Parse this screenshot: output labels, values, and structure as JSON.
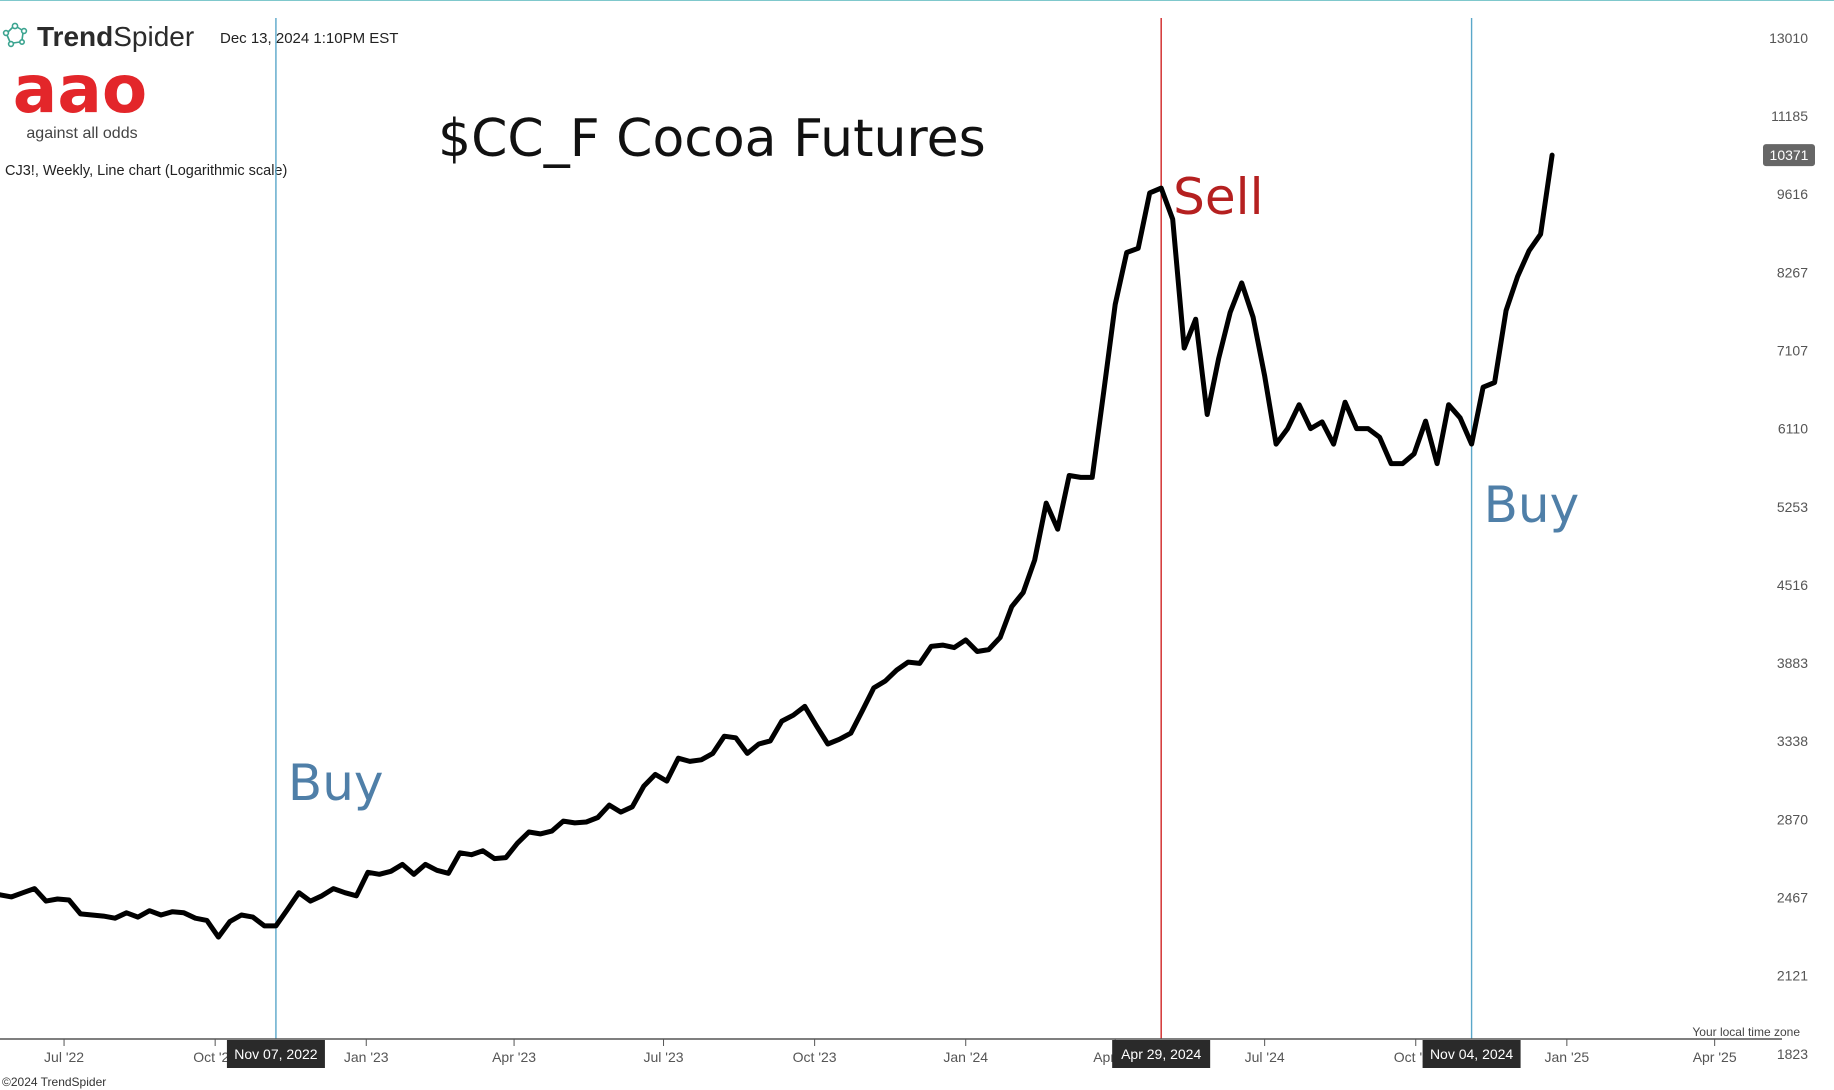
{
  "header": {
    "brand": "TrendSpider",
    "brand_bold": "Trend",
    "brand_light": "Spider",
    "timestamp": "Dec 13, 2024 1:10PM EST",
    "logo_text": "aao",
    "logo_tagline": "against all odds",
    "chart_desc": "CJ3!, Weekly, Line chart (Logarithmic scale)",
    "footer_copyright": "©2024 TrendSpider",
    "timezone_note": "Your local time zone",
    "brand_color": "#e3262a",
    "logo_icon": "network-nodes-icon"
  },
  "chart_data": {
    "type": "line",
    "title": "$CC_F Cocoa Futures",
    "yscale": "log",
    "ylim": [
      1700,
      14000
    ],
    "xlim": [
      "2022-05-23",
      "2025-05-12"
    ],
    "grid": false,
    "y_ticks": [
      13010,
      11185,
      9616,
      8267,
      7107,
      6110,
      5253,
      4516,
      3883,
      3338,
      2870,
      2467,
      2121,
      1823
    ],
    "x_ticks": [
      {
        "label": "Jul '22",
        "date": "2022-07-01"
      },
      {
        "label": "Oct '22",
        "date": "2022-10-01"
      },
      {
        "label": "Jan '23",
        "date": "2023-01-01"
      },
      {
        "label": "Apr '23",
        "date": "2023-04-01"
      },
      {
        "label": "Jul '23",
        "date": "2023-07-01"
      },
      {
        "label": "Oct '23",
        "date": "2023-10-01"
      },
      {
        "label": "Jan '24",
        "date": "2024-01-01"
      },
      {
        "label": "Apr '24",
        "date": "2024-04-01"
      },
      {
        "label": "Jul '24",
        "date": "2024-07-01"
      },
      {
        "label": "Oct '24",
        "date": "2024-10-01"
      },
      {
        "label": "Jan '25",
        "date": "2025-01-01"
      },
      {
        "label": "Apr '25",
        "date": "2025-04-01"
      }
    ],
    "last_price": 10371,
    "markers": [
      {
        "date": "2022-11-07",
        "label": "Nov 07, 2022",
        "signal": "Buy",
        "color": "#5aa7c9",
        "text_color": "#4f7fa8"
      },
      {
        "date": "2024-04-29",
        "label": "Apr 29, 2024",
        "signal": "Sell",
        "color": "#d02424",
        "text_color": "#b52020"
      },
      {
        "date": "2024-11-04",
        "label": "Nov 04, 2024",
        "signal": "Buy",
        "color": "#5aa7c9",
        "text_color": "#4f7fa8"
      }
    ],
    "series": [
      {
        "color": "#000000",
        "points": [
          [
            "2022-05-23",
            2480
          ],
          [
            "2022-05-30",
            2470
          ],
          [
            "2022-06-06",
            2490
          ],
          [
            "2022-06-13",
            2510
          ],
          [
            "2022-06-20",
            2450
          ],
          [
            "2022-06-27",
            2460
          ],
          [
            "2022-07-04",
            2455
          ],
          [
            "2022-07-11",
            2390
          ],
          [
            "2022-07-18",
            2385
          ],
          [
            "2022-07-25",
            2380
          ],
          [
            "2022-08-01",
            2370
          ],
          [
            "2022-08-08",
            2395
          ],
          [
            "2022-08-15",
            2375
          ],
          [
            "2022-08-22",
            2405
          ],
          [
            "2022-08-29",
            2385
          ],
          [
            "2022-09-05",
            2400
          ],
          [
            "2022-09-12",
            2395
          ],
          [
            "2022-09-19",
            2370
          ],
          [
            "2022-09-26",
            2360
          ],
          [
            "2022-10-03",
            2285
          ],
          [
            "2022-10-10",
            2355
          ],
          [
            "2022-10-17",
            2385
          ],
          [
            "2022-10-24",
            2375
          ],
          [
            "2022-10-31",
            2335
          ],
          [
            "2022-11-07",
            2335
          ],
          [
            "2022-11-14",
            2410
          ],
          [
            "2022-11-21",
            2490
          ],
          [
            "2022-11-28",
            2450
          ],
          [
            "2022-12-05",
            2475
          ],
          [
            "2022-12-12",
            2510
          ],
          [
            "2022-12-19",
            2490
          ],
          [
            "2022-12-26",
            2475
          ],
          [
            "2023-01-02",
            2590
          ],
          [
            "2023-01-09",
            2580
          ],
          [
            "2023-01-16",
            2595
          ],
          [
            "2023-01-23",
            2630
          ],
          [
            "2023-01-30",
            2580
          ],
          [
            "2023-02-06",
            2630
          ],
          [
            "2023-02-13",
            2600
          ],
          [
            "2023-02-20",
            2585
          ],
          [
            "2023-02-27",
            2690
          ],
          [
            "2023-03-06",
            2680
          ],
          [
            "2023-03-13",
            2700
          ],
          [
            "2023-03-20",
            2660
          ],
          [
            "2023-03-27",
            2665
          ],
          [
            "2023-04-03",
            2740
          ],
          [
            "2023-04-10",
            2800
          ],
          [
            "2023-04-17",
            2790
          ],
          [
            "2023-04-24",
            2805
          ],
          [
            "2023-05-01",
            2860
          ],
          [
            "2023-05-08",
            2850
          ],
          [
            "2023-05-15",
            2855
          ],
          [
            "2023-05-22",
            2880
          ],
          [
            "2023-05-29",
            2950
          ],
          [
            "2023-06-05",
            2910
          ],
          [
            "2023-06-12",
            2940
          ],
          [
            "2023-06-19",
            3060
          ],
          [
            "2023-06-26",
            3130
          ],
          [
            "2023-07-03",
            3090
          ],
          [
            "2023-07-10",
            3230
          ],
          [
            "2023-07-17",
            3210
          ],
          [
            "2023-07-24",
            3220
          ],
          [
            "2023-07-31",
            3260
          ],
          [
            "2023-08-07",
            3370
          ],
          [
            "2023-08-14",
            3360
          ],
          [
            "2023-08-21",
            3260
          ],
          [
            "2023-08-28",
            3320
          ],
          [
            "2023-09-04",
            3340
          ],
          [
            "2023-09-11",
            3470
          ],
          [
            "2023-09-18",
            3510
          ],
          [
            "2023-09-25",
            3570
          ],
          [
            "2023-10-02",
            3440
          ],
          [
            "2023-10-09",
            3320
          ],
          [
            "2023-10-16",
            3350
          ],
          [
            "2023-10-23",
            3390
          ],
          [
            "2023-10-30",
            3540
          ],
          [
            "2023-11-06",
            3700
          ],
          [
            "2023-11-13",
            3750
          ],
          [
            "2023-11-20",
            3830
          ],
          [
            "2023-11-27",
            3890
          ],
          [
            "2023-12-04",
            3880
          ],
          [
            "2023-12-11",
            4010
          ],
          [
            "2023-12-18",
            4020
          ],
          [
            "2023-12-25",
            4000
          ],
          [
            "2024-01-01",
            4060
          ],
          [
            "2024-01-08",
            3970
          ],
          [
            "2024-01-15",
            3985
          ],
          [
            "2024-01-22",
            4080
          ],
          [
            "2024-01-29",
            4330
          ],
          [
            "2024-02-05",
            4450
          ],
          [
            "2024-02-12",
            4740
          ],
          [
            "2024-02-19",
            5290
          ],
          [
            "2024-02-26",
            5030
          ],
          [
            "2024-03-04",
            5580
          ],
          [
            "2024-03-11",
            5560
          ],
          [
            "2024-03-18",
            5560
          ],
          [
            "2024-03-25",
            6560
          ],
          [
            "2024-04-01",
            7770
          ],
          [
            "2024-04-08",
            8590
          ],
          [
            "2024-04-15",
            8660
          ],
          [
            "2024-04-22",
            9640
          ],
          [
            "2024-04-29",
            9730
          ],
          [
            "2024-05-06",
            9160
          ],
          [
            "2024-05-13",
            7140
          ],
          [
            "2024-05-20",
            7550
          ],
          [
            "2024-05-27",
            6280
          ],
          [
            "2024-06-03",
            7000
          ],
          [
            "2024-06-10",
            7650
          ],
          [
            "2024-06-17",
            8100
          ],
          [
            "2024-06-24",
            7580
          ],
          [
            "2024-07-01",
            6770
          ],
          [
            "2024-07-08",
            5930
          ],
          [
            "2024-07-15",
            6110
          ],
          [
            "2024-07-22",
            6400
          ],
          [
            "2024-07-29",
            6110
          ],
          [
            "2024-08-05",
            6190
          ],
          [
            "2024-08-12",
            5930
          ],
          [
            "2024-08-19",
            6430
          ],
          [
            "2024-08-26",
            6110
          ],
          [
            "2024-09-02",
            6110
          ],
          [
            "2024-09-09",
            6010
          ],
          [
            "2024-09-16",
            5710
          ],
          [
            "2024-09-23",
            5710
          ],
          [
            "2024-09-30",
            5820
          ],
          [
            "2024-10-07",
            6200
          ],
          [
            "2024-10-14",
            5710
          ],
          [
            "2024-10-21",
            6400
          ],
          [
            "2024-10-28",
            6240
          ],
          [
            "2024-11-04",
            5930
          ],
          [
            "2024-11-11",
            6620
          ],
          [
            "2024-11-18",
            6680
          ],
          [
            "2024-11-25",
            7680
          ],
          [
            "2024-12-02",
            8200
          ],
          [
            "2024-12-09",
            8620
          ],
          [
            "2024-12-16",
            8900
          ],
          [
            "2024-12-23",
            10371
          ]
        ]
      }
    ]
  }
}
